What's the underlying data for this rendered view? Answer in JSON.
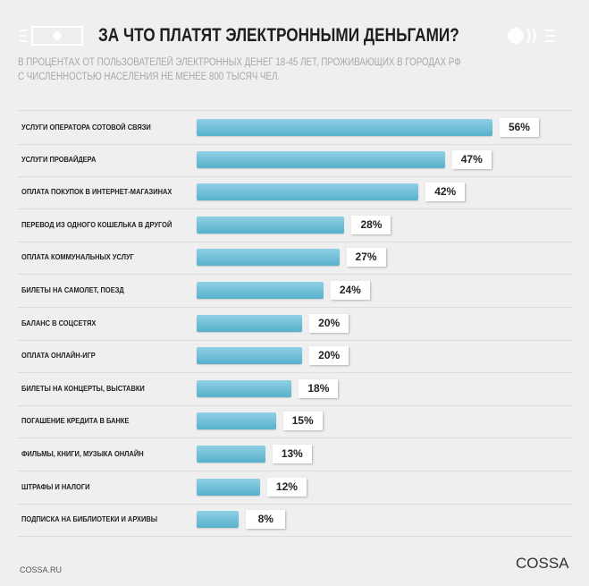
{
  "header": {
    "title": "ЗА ЧТО ПЛАТЯТ ЭЛЕКТРОННЫМИ ДЕНЬГАМИ?",
    "subtitle_line1": "В ПРОЦЕНТАХ ОТ ПОЛЬЗОВАТЕЛЕЙ ЭЛЕКТРОННЫХ ДЕНЕГ 18-45 ЛЕТ, ПРОЖИВАЮЩИХ В  ГОРОДАХ РФ",
    "subtitle_line2": "С ЧИСЛЕННОСТЬЮ НАСЕЛЕНИЯ НЕ МЕНЕЕ 800 ТЫСЯЧ ЧЕЛ."
  },
  "footer": {
    "source": "COSSA.RU",
    "logo": "COSSA"
  },
  "colors": {
    "bar": "#6cbfd6",
    "background": "#efefef"
  },
  "chart_data": {
    "type": "bar",
    "orientation": "horizontal",
    "title": "ЗА ЧТО ПЛАТЯТ ЭЛЕКТРОННЫМИ ДЕНЬГАМИ?",
    "unit": "%",
    "xlim": [
      0,
      100
    ],
    "grid": false,
    "categories": [
      "УСЛУГИ ОПЕРАТОРА СОТОВОЙ СВЯЗИ",
      "УСЛУГИ ПРОВАЙДЕРА",
      "ОПЛАТА ПОКУПОК В ИНТЕРНЕТ-МАГАЗИНАХ",
      "ПЕРЕВОД ИЗ ОДНОГО КОШЕЛЬКА В ДРУГОЙ",
      "ОПЛАТА КОММУНАЛЬНЫХ УСЛУГ",
      "БИЛЕТЫ НА САМОЛЕТ, ПОЕЗД",
      "БАЛАНС В СОЦСЕТЯХ",
      "ОПЛАТА ОНЛАЙН-ИГР",
      "БИЛЕТЫ НА КОНЦЕРТЫ, ВЫСТАВКИ",
      "ПОГАШЕНИЕ КРЕДИТА В БАНКЕ",
      "ФИЛЬМЫ, КНИГИ, МУЗЫКА ОНЛАЙН",
      "ШТРАФЫ И НАЛОГИ",
      "ПОДПИСКА НА БИБЛИОТЕКИ И АРХИВЫ"
    ],
    "values": [
      56,
      47,
      42,
      28,
      27,
      24,
      20,
      20,
      18,
      15,
      13,
      12,
      8
    ],
    "labels": [
      "56%",
      "47%",
      "42%",
      "28%",
      "27%",
      "24%",
      "20%",
      "20%",
      "18%",
      "15%",
      "13%",
      "12%",
      "8%"
    ]
  }
}
